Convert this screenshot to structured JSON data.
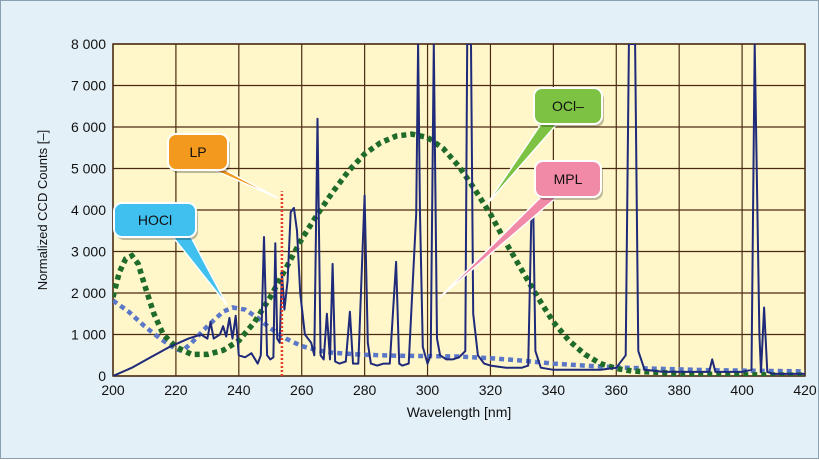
{
  "chart_data": {
    "type": "line",
    "xlabel": "Wavelength [nm]",
    "ylabel": "Normalized CCD Counts  [–]",
    "xlim": [
      200,
      420
    ],
    "ylim": [
      0,
      8000
    ],
    "x_ticks": [
      "200",
      "220",
      "240",
      "260",
      "280",
      "300",
      "320",
      "340",
      "360",
      "380",
      "400",
      "420"
    ],
    "y_ticks": [
      "0",
      "1 000",
      "2 000",
      "3 000",
      "4 000",
      "5 000",
      "6 000",
      "7 000",
      "8 000"
    ],
    "grid": true,
    "colors": {
      "plot_bg": "#fff6c9",
      "grid": "#4a2b12",
      "mpl_line": "#1f2a7a",
      "ocl_curve": "#1e6b2a",
      "hocl_curve": "#5b78c8",
      "lp_line": "#e23d2a",
      "callout_lp": "#f39a1e",
      "callout_hocl": "#3fc0ef",
      "callout_ocl": "#7dc242",
      "callout_mpl": "#f08aa6"
    },
    "series": [
      {
        "name": "MPL",
        "style": "solid-line",
        "points": [
          [
            200,
            0
          ],
          [
            206,
            200
          ],
          [
            212,
            450
          ],
          [
            218,
            700
          ],
          [
            224,
            900
          ],
          [
            228,
            1000
          ],
          [
            230,
            900
          ],
          [
            231,
            1300
          ],
          [
            232,
            900
          ],
          [
            234,
            1000
          ],
          [
            235,
            1200
          ],
          [
            236,
            950
          ],
          [
            237,
            1400
          ],
          [
            238,
            900
          ],
          [
            239,
            1450
          ],
          [
            240,
            500
          ],
          [
            242,
            450
          ],
          [
            244,
            550
          ],
          [
            246,
            300
          ],
          [
            247,
            500
          ],
          [
            248,
            3350
          ],
          [
            249,
            500
          ],
          [
            250,
            400
          ],
          [
            251,
            450
          ],
          [
            251.6,
            3200
          ],
          [
            252.2,
            900
          ],
          [
            253,
            800
          ],
          [
            253.7,
            2500
          ],
          [
            254.5,
            1600
          ],
          [
            255.5,
            2300
          ],
          [
            256.5,
            3950
          ],
          [
            257.5,
            4050
          ],
          [
            258.5,
            3500
          ],
          [
            259.5,
            2000
          ],
          [
            261,
            1000
          ],
          [
            263,
            800
          ],
          [
            264,
            500
          ],
          [
            265,
            6200
          ],
          [
            266,
            500
          ],
          [
            267,
            400
          ],
          [
            268,
            1500
          ],
          [
            269,
            400
          ],
          [
            269.8,
            2700
          ],
          [
            270.6,
            350
          ],
          [
            272,
            300
          ],
          [
            274,
            350
          ],
          [
            275.3,
            1550
          ],
          [
            276.3,
            300
          ],
          [
            278,
            300
          ],
          [
            280,
            4350
          ],
          [
            281,
            800
          ],
          [
            282,
            300
          ],
          [
            284,
            250
          ],
          [
            286,
            300
          ],
          [
            288,
            300
          ],
          [
            290,
            2750
          ],
          [
            291,
            300
          ],
          [
            292,
            250
          ],
          [
            294,
            300
          ],
          [
            296.4,
            3900
          ],
          [
            297,
            8000
          ],
          [
            297.6,
            3900
          ],
          [
            298.5,
            700
          ],
          [
            300,
            300
          ],
          [
            301,
            500
          ],
          [
            302,
            8000
          ],
          [
            303,
            900
          ],
          [
            304,
            500
          ],
          [
            306,
            400
          ],
          [
            308,
            400
          ],
          [
            310,
            450
          ],
          [
            312,
            600
          ],
          [
            312.6,
            8000
          ],
          [
            313.8,
            8000
          ],
          [
            314.5,
            1500
          ],
          [
            316,
            500
          ],
          [
            318,
            300
          ],
          [
            320,
            250
          ],
          [
            325,
            200
          ],
          [
            330,
            200
          ],
          [
            332,
            250
          ],
          [
            333,
            3800
          ],
          [
            333.6,
            4100
          ],
          [
            334.3,
            600
          ],
          [
            336,
            200
          ],
          [
            340,
            150
          ],
          [
            345,
            150
          ],
          [
            350,
            150
          ],
          [
            355,
            150
          ],
          [
            360,
            200
          ],
          [
            363,
            500
          ],
          [
            364,
            8000
          ],
          [
            366,
            8000
          ],
          [
            367,
            600
          ],
          [
            369,
            150
          ],
          [
            375,
            100
          ],
          [
            380,
            100
          ],
          [
            385,
            100
          ],
          [
            389.5,
            100
          ],
          [
            390.5,
            400
          ],
          [
            391.5,
            100
          ],
          [
            395,
            100
          ],
          [
            400,
            100
          ],
          [
            403,
            150
          ],
          [
            404,
            8000
          ],
          [
            405.5,
            1000
          ],
          [
            406,
            100
          ],
          [
            407,
            1650
          ],
          [
            408,
            100
          ],
          [
            410,
            50
          ],
          [
            415,
            50
          ],
          [
            420,
            50
          ]
        ]
      },
      {
        "name": "OCl–",
        "style": "dotted-bold",
        "points": [
          [
            200,
            1900
          ],
          [
            202,
            2500
          ],
          [
            204,
            2820
          ],
          [
            206,
            2900
          ],
          [
            208,
            2700
          ],
          [
            210,
            2200
          ],
          [
            213,
            1500
          ],
          [
            216,
            1000
          ],
          [
            220,
            700
          ],
          [
            225,
            520
          ],
          [
            230,
            520
          ],
          [
            235,
            620
          ],
          [
            240,
            850
          ],
          [
            245,
            1300
          ],
          [
            250,
            1900
          ],
          [
            255,
            2600
          ],
          [
            260,
            3300
          ],
          [
            265,
            3900
          ],
          [
            270,
            4450
          ],
          [
            275,
            4950
          ],
          [
            280,
            5350
          ],
          [
            285,
            5620
          ],
          [
            290,
            5780
          ],
          [
            295,
            5830
          ],
          [
            300,
            5750
          ],
          [
            305,
            5480
          ],
          [
            310,
            5050
          ],
          [
            315,
            4500
          ],
          [
            320,
            3900
          ],
          [
            325,
            3200
          ],
          [
            330,
            2550
          ],
          [
            335,
            1900
          ],
          [
            340,
            1300
          ],
          [
            345,
            850
          ],
          [
            350,
            520
          ],
          [
            355,
            300
          ],
          [
            360,
            180
          ],
          [
            365,
            120
          ],
          [
            370,
            100
          ],
          [
            380,
            60
          ],
          [
            390,
            40
          ],
          [
            400,
            30
          ],
          [
            410,
            25
          ],
          [
            420,
            20
          ]
        ]
      },
      {
        "name": "HOCl",
        "style": "dotted",
        "points": [
          [
            200,
            1820
          ],
          [
            205,
            1550
          ],
          [
            210,
            1200
          ],
          [
            215,
            900
          ],
          [
            220,
            650
          ],
          [
            222,
            600
          ],
          [
            225,
            800
          ],
          [
            230,
            1200
          ],
          [
            235,
            1550
          ],
          [
            238,
            1650
          ],
          [
            242,
            1600
          ],
          [
            246,
            1400
          ],
          [
            250,
            1150
          ],
          [
            255,
            900
          ],
          [
            260,
            720
          ],
          [
            265,
            620
          ],
          [
            270,
            560
          ],
          [
            280,
            510
          ],
          [
            290,
            490
          ],
          [
            300,
            480
          ],
          [
            310,
            470
          ],
          [
            320,
            430
          ],
          [
            330,
            370
          ],
          [
            340,
            300
          ],
          [
            350,
            250
          ],
          [
            360,
            210
          ],
          [
            370,
            180
          ],
          [
            380,
            160
          ],
          [
            390,
            140
          ],
          [
            400,
            130
          ],
          [
            410,
            120
          ],
          [
            420,
            110
          ]
        ]
      },
      {
        "name": "LP",
        "style": "dashed-vertical",
        "points": [
          [
            253.7,
            0
          ],
          [
            253.7,
            4450
          ]
        ]
      }
    ],
    "annotations": [
      {
        "text": "LP",
        "target": "LP"
      },
      {
        "text": "HOCl",
        "target": "HOCl"
      },
      {
        "text": "OCl–",
        "target": "OCl–"
      },
      {
        "text": "MPL",
        "target": "MPL"
      }
    ]
  }
}
